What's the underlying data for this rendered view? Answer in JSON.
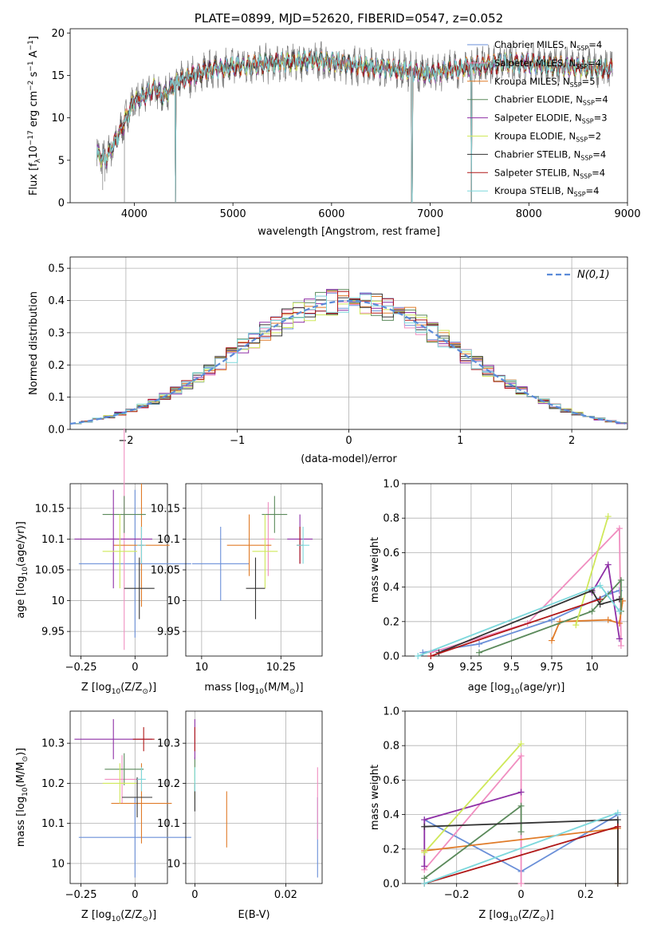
{
  "colors": [
    "#6a8fd8",
    "#f08ec0",
    "#e07b28",
    "#5b8a5b",
    "#8e2fa6",
    "#cfe85a",
    "#333333",
    "#b01818",
    "#7dd8dc"
  ],
  "chart_data": [
    {
      "id": "spectrum",
      "type": "line",
      "title": "PLATE=0899, MJD=52620, FIBERID=0547, z=0.052",
      "xlabel": "wavelength [Angstrom, rest frame]",
      "ylabel": "Flux [f",
      "ylabel_sub": "λ",
      "ylabel_rest": "10",
      "ylabel_sup": "−17",
      "ylabel_tail": " erg cm",
      "ylabel_sup2": "−2",
      "ylabel_tail2": " s",
      "ylabel_sup3": "−1",
      "ylabel_tail3": " A",
      "ylabel_sup4": "−1",
      "ylabel_end": "]",
      "xlim": [
        3350,
        9000
      ],
      "ylim": [
        0,
        20.5
      ],
      "xticks": [
        4000,
        5000,
        6000,
        7000,
        8000,
        9000
      ],
      "yticks": [
        0,
        5,
        10,
        15,
        20
      ],
      "legend_position": "right",
      "continuum_x": [
        3600,
        3700,
        3800,
        3900,
        4000,
        4100,
        4200,
        4300,
        4400,
        4600,
        4800,
        5000,
        5200,
        5400,
        5600,
        5800,
        6000,
        6200,
        6400,
        6600,
        6800,
        7000,
        7200,
        7400,
        7600,
        7800,
        8000,
        8200,
        8400,
        8600,
        8800
      ],
      "continuum_y": [
        6.0,
        5.0,
        7.0,
        9.5,
        12.0,
        12.5,
        13.5,
        12.5,
        14.0,
        15.0,
        15.8,
        16.0,
        16.2,
        16.5,
        16.6,
        16.8,
        16.6,
        16.3,
        16.0,
        15.8,
        15.5,
        15.2,
        15.6,
        16.0,
        16.3,
        16.5,
        16.4,
        16.2,
        16.0,
        15.9,
        15.8
      ],
      "dips": [
        {
          "x": 4420,
          "y": 0
        },
        {
          "x": 6815,
          "y": 0
        },
        {
          "x": 7420,
          "y": 0
        }
      ],
      "series": [
        {
          "name": "Chabrier MILES",
          "nssp": "4"
        },
        {
          "name": "Salpeter MILES",
          "nssp": "4"
        },
        {
          "name": "Kroupa MILES",
          "nssp": "5"
        },
        {
          "name": "Chabrier ELODIE",
          "nssp": "4"
        },
        {
          "name": "Salpeter ELODIE",
          "nssp": "3"
        },
        {
          "name": "Kroupa ELODIE",
          "nssp": "2"
        },
        {
          "name": "Chabrier STELIB",
          "nssp": "4"
        },
        {
          "name": "Salpeter STELIB",
          "nssp": "4"
        },
        {
          "name": "Kroupa STELIB",
          "nssp": "4"
        }
      ],
      "nssp_label": "N",
      "nssp_sub": "SSP"
    },
    {
      "id": "residuals",
      "type": "histogram",
      "xlabel": "(data-model)/error",
      "ylabel": "Normed distribution",
      "xlim": [
        -2.5,
        2.5
      ],
      "ylim": [
        0,
        0.535
      ],
      "xticks": [
        -2,
        -1,
        0,
        1,
        2
      ],
      "yticks": [
        0.0,
        0.1,
        0.2,
        0.3,
        0.4,
        0.5
      ],
      "grid": true,
      "bin_width": 0.1,
      "legend": "N(0,1)",
      "legend_position": "top-right"
    },
    {
      "id": "age-vs-z",
      "type": "errorbar",
      "xlabel": "Z [log",
      "xlabel_sub": "10",
      "xlabel_rest": "(Z/Z",
      "xlabel_sub2": "⊙",
      "xlabel_end": ")]",
      "ylabel": "age  [log",
      "ylabel_sub": "10",
      "ylabel_rest": "(age/yr)]",
      "xlim": [
        -0.3,
        0.15
      ],
      "ylim": [
        9.91,
        10.19
      ],
      "xticks": [
        -0.25,
        0.0
      ],
      "yticks": [
        9.95,
        10.0,
        10.05,
        10.1,
        10.15
      ],
      "grid": true,
      "points": [
        {
          "x": -0.0,
          "y": 10.06,
          "xerr": 0.26,
          "yerr": 0.12
        },
        {
          "x": -0.05,
          "y": 10.1,
          "xerr": 0.08,
          "yerr": 0.18
        },
        {
          "x": 0.03,
          "y": 10.09,
          "xerr": 0.13,
          "yerr": 0.1
        },
        {
          "x": -0.05,
          "y": 10.14,
          "xerr": 0.1,
          "yerr": 0.03
        },
        {
          "x": -0.1,
          "y": 10.1,
          "xerr": 0.18,
          "yerr": 0.08
        },
        {
          "x": -0.07,
          "y": 10.08,
          "xerr": 0.08,
          "yerr": 0.06
        },
        {
          "x": 0.02,
          "y": 10.02,
          "xerr": 0.07,
          "yerr": 0.05
        },
        {
          "x": 0.03,
          "y": 10.09,
          "xerr": 0.01,
          "yerr": 0.03
        },
        {
          "x": 0.03,
          "y": 10.09,
          "xerr": 0.02,
          "yerr": 0.03
        }
      ]
    },
    {
      "id": "age-vs-mass",
      "type": "errorbar",
      "xlabel": "mass [log",
      "xlabel_sub": "10",
      "xlabel_rest": "(M/M",
      "xlabel_sub2": "⊙",
      "xlabel_end": ")]",
      "xlim": [
        9.95,
        10.38
      ],
      "ylim": [
        9.91,
        10.19
      ],
      "xticks": [
        10.0,
        10.25
      ],
      "yticks": [
        9.95,
        10.0,
        10.05,
        10.1,
        10.15
      ],
      "grid": true,
      "points": [
        {
          "x": 10.06,
          "y": 10.06,
          "xerr": 0.09,
          "yerr": 0.06
        },
        {
          "x": 10.21,
          "y": 10.1,
          "xerr": 0.02,
          "yerr": 0.06
        },
        {
          "x": 10.15,
          "y": 10.09,
          "xerr": 0.07,
          "yerr": 0.05
        },
        {
          "x": 10.23,
          "y": 10.14,
          "xerr": 0.04,
          "yerr": 0.03
        },
        {
          "x": 10.31,
          "y": 10.1,
          "xerr": 0.04,
          "yerr": 0.04
        },
        {
          "x": 10.2,
          "y": 10.08,
          "xerr": 0.04,
          "yerr": 0.06
        },
        {
          "x": 10.17,
          "y": 10.02,
          "xerr": 0.03,
          "yerr": 0.05
        },
        {
          "x": 10.31,
          "y": 10.09,
          "xerr": 0.01,
          "yerr": 0.03
        },
        {
          "x": 10.32,
          "y": 10.09,
          "xerr": 0.02,
          "yerr": 0.03
        }
      ]
    },
    {
      "id": "weight-vs-age",
      "type": "line",
      "xlabel": "age  [log",
      "xlabel_sub": "10",
      "xlabel_rest": "(age/yr)]",
      "ylabel": "mass weight",
      "xlim": [
        8.84,
        10.22
      ],
      "ylim": [
        0,
        1.0
      ],
      "xticks": [
        9.0,
        9.25,
        9.5,
        9.75,
        10.0
      ],
      "yticks": [
        0.0,
        0.2,
        0.4,
        0.6,
        0.8,
        1.0
      ],
      "grid": true,
      "series": [
        {
          "x": [
            8.95,
            9.3,
            9.75,
            10.1,
            10.17
          ],
          "y": [
            0.02,
            0.07,
            0.21,
            0.36,
            0.38
          ]
        },
        {
          "x": [
            9.0,
            9.6,
            10.17,
            10.18
          ],
          "y": [
            0.02,
            0.19,
            0.74,
            0.06
          ]
        },
        {
          "x": [
            9.75,
            9.8,
            10.1,
            10.17,
            10.19
          ],
          "y": [
            0.09,
            0.2,
            0.21,
            0.19,
            0.32
          ]
        },
        {
          "x": [
            9.3,
            10.0,
            10.18,
            10.18
          ],
          "y": [
            0.02,
            0.26,
            0.44,
            0.26
          ]
        },
        {
          "x": [
            10.0,
            10.1,
            10.17
          ],
          "y": [
            0.37,
            0.53,
            0.1
          ]
        },
        {
          "x": [
            9.9,
            10.1
          ],
          "y": [
            0.18,
            0.81
          ]
        },
        {
          "x": [
            9.05,
            10.0,
            10.05,
            10.17
          ],
          "y": [
            0.02,
            0.38,
            0.3,
            0.33
          ]
        },
        {
          "x": [
            9.0,
            10.05
          ],
          "y": [
            0.0,
            0.33
          ]
        },
        {
          "x": [
            8.92,
            10.05,
            10.17
          ],
          "y": [
            0.0,
            0.41,
            0.26
          ]
        }
      ]
    },
    {
      "id": "mass-vs-z",
      "type": "errorbar",
      "xlabel": "Z [log",
      "xlabel_sub": "10",
      "xlabel_rest": "(Z/Z",
      "xlabel_sub2": "⊙",
      "xlabel_end": ")]",
      "ylabel": "mass [log",
      "ylabel_sub": "10",
      "ylabel_rest": "(M/M",
      "ylabel_sub2": "⊙",
      "ylabel_end": ")]",
      "xlim": [
        -0.3,
        0.15
      ],
      "ylim": [
        9.95,
        10.38
      ],
      "xticks": [
        -0.25,
        0.0
      ],
      "yticks": [
        10.0,
        10.1,
        10.2,
        10.3
      ],
      "grid": true,
      "points": [
        {
          "x": -0.0,
          "y": 10.065,
          "xerr": 0.26,
          "yerr": 0.1
        },
        {
          "x": -0.06,
          "y": 10.21,
          "xerr": 0.08,
          "yerr": 0.06
        },
        {
          "x": 0.03,
          "y": 10.15,
          "xerr": 0.14,
          "yerr": 0.1
        },
        {
          "x": -0.05,
          "y": 10.235,
          "xerr": 0.09,
          "yerr": 0.04
        },
        {
          "x": -0.1,
          "y": 10.31,
          "xerr": 0.18,
          "yerr": 0.05
        },
        {
          "x": -0.07,
          "y": 10.2,
          "xerr": 0.08,
          "yerr": 0.05
        },
        {
          "x": 0.01,
          "y": 10.165,
          "xerr": 0.07,
          "yerr": 0.05
        },
        {
          "x": 0.04,
          "y": 10.31,
          "xerr": 0.05,
          "yerr": 0.03
        },
        {
          "x": 0.03,
          "y": 10.21,
          "xerr": 0.02,
          "yerr": 0.03
        }
      ]
    },
    {
      "id": "mass-vs-ebv",
      "type": "errorbar",
      "xlabel": "E(B-V)",
      "xlim": [
        -0.002,
        0.028
      ],
      "ylim": [
        9.95,
        10.38
      ],
      "xticks": [
        0.0,
        0.02
      ],
      "yticks": [
        10.0,
        10.1,
        10.2,
        10.3
      ],
      "grid": true,
      "points": [
        {
          "x": 0.027,
          "y": 10.065,
          "xerr": 0,
          "yerr": 0.1
        },
        {
          "x": 0.027,
          "y": 10.15,
          "xerr": 0,
          "yerr": 0.09
        },
        {
          "x": 0.007,
          "y": 10.11,
          "xerr": 0,
          "yerr": 0.07
        },
        {
          "x": 0.0,
          "y": 10.235,
          "xerr": 0,
          "yerr": 0.03
        },
        {
          "x": 0.0,
          "y": 10.31,
          "xerr": 0,
          "yerr": 0.05
        },
        {
          "x": 0.0,
          "y": 10.2,
          "xerr": 0,
          "yerr": 0.04
        },
        {
          "x": 0.0,
          "y": 10.165,
          "xerr": 0,
          "yerr": 0.035
        },
        {
          "x": 0.0,
          "y": 10.31,
          "xerr": 0,
          "yerr": 0.03
        },
        {
          "x": 0.0,
          "y": 10.21,
          "xerr": 0,
          "yerr": 0.03
        }
      ]
    },
    {
      "id": "weight-vs-z",
      "type": "line",
      "xlabel": "Z [log",
      "xlabel_sub": "10",
      "xlabel_rest": "(Z/Z",
      "xlabel_sub2": "⊙",
      "xlabel_end": ")]",
      "ylabel": "mass weight",
      "xlim": [
        -0.36,
        0.33
      ],
      "ylim": [
        0,
        1.0
      ],
      "xticks": [
        -0.2,
        0.0,
        0.2
      ],
      "yticks": [
        0.0,
        0.2,
        0.4,
        0.6,
        0.8,
        1.0
      ],
      "grid": true,
      "series": [
        {
          "x": [
            -0.3,
            0.0,
            0.3
          ],
          "y": [
            0.37,
            0.07,
            0.4
          ]
        },
        {
          "x": [
            -0.3,
            0.0,
            0.0
          ],
          "y": [
            0.08,
            0.74,
            0.0
          ]
        },
        {
          "x": [
            -0.3,
            0.3,
            0.3
          ],
          "y": [
            0.19,
            0.32,
            0.0
          ]
        },
        {
          "x": [
            -0.3,
            0.0,
            0.0
          ],
          "y": [
            0.03,
            0.45,
            0.3
          ]
        },
        {
          "x": [
            -0.3,
            -0.3,
            0.0
          ],
          "y": [
            0.1,
            0.37,
            0.53
          ]
        },
        {
          "x": [
            -0.3,
            0.0
          ],
          "y": [
            0.18,
            0.81
          ]
        },
        {
          "x": [
            -0.3,
            0.3,
            0.3
          ],
          "y": [
            0.33,
            0.37,
            0.0
          ]
        },
        {
          "x": [
            -0.3,
            0.3
          ],
          "y": [
            0.0,
            0.33
          ]
        },
        {
          "x": [
            -0.3,
            0.3
          ],
          "y": [
            0.0,
            0.41
          ]
        }
      ]
    }
  ]
}
